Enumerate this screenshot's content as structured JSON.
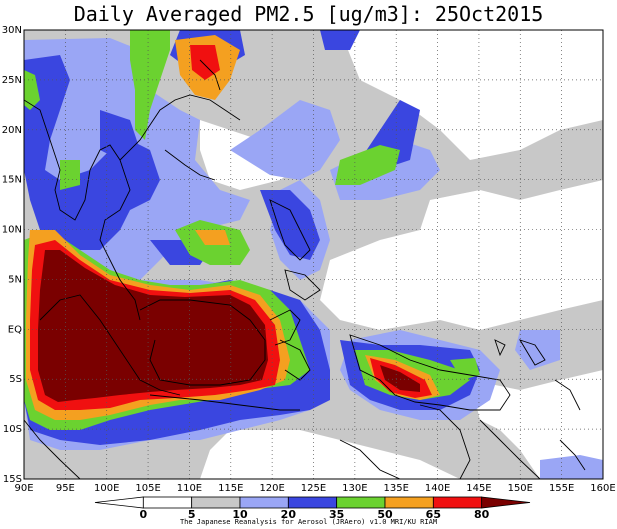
{
  "title": "Daily Averaged PM2.5 [ug/m3]: 25Oct2015",
  "credit": "The Japanese Reanalysis for Aerosol (JRAero) v1.0 MRI/KU RIAM",
  "map": {
    "lat_labels": [
      "30N",
      "25N",
      "20N",
      "15N",
      "10N",
      "5N",
      "EQ",
      "5S",
      "10S",
      "15S"
    ],
    "lon_labels": [
      "90E",
      "95E",
      "100E",
      "105E",
      "110E",
      "115E",
      "120E",
      "125E",
      "130E",
      "135E",
      "140E",
      "145E",
      "150E",
      "155E",
      "160E"
    ],
    "lat_range": [
      -15,
      30
    ],
    "lon_range": [
      90,
      160
    ],
    "grid": "dotted"
  },
  "colorbar": {
    "labels": [
      "0",
      "5",
      "10",
      "20",
      "35",
      "50",
      "65",
      "80"
    ],
    "colors": [
      "#ffffff",
      "#ffffff",
      "#c8c8c8",
      "#9aa6f5",
      "#3a46e0",
      "#6bd230",
      "#f4a020",
      "#f01010",
      "#7a0000"
    ]
  }
}
